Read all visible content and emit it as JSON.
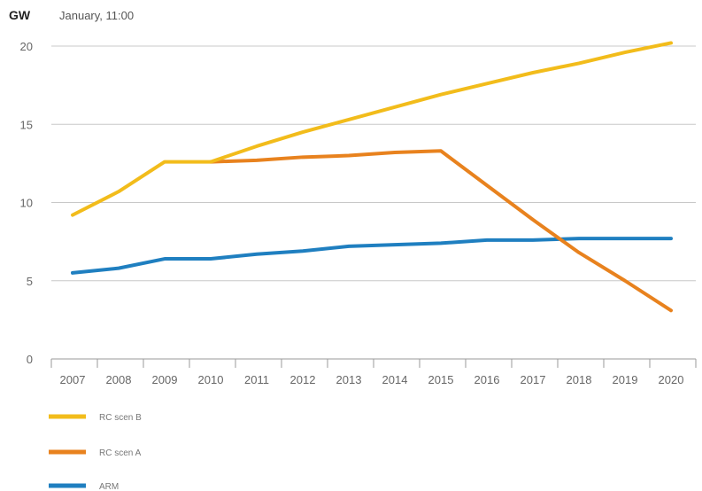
{
  "chart_data": {
    "type": "line",
    "title": "January, 11:00",
    "unit": "GW",
    "x": [
      2007,
      2008,
      2009,
      2010,
      2011,
      2012,
      2013,
      2014,
      2015,
      2016,
      2017,
      2018,
      2019,
      2020
    ],
    "x_tick_labels": [
      "2007",
      "2008",
      "2009",
      "2010",
      "2011",
      "2012",
      "2013",
      "2014",
      "2015",
      "2016",
      "2017",
      "2018",
      "2019",
      "2020"
    ],
    "ylim": [
      0,
      20
    ],
    "y_ticks": [
      0,
      5,
      10,
      15,
      20
    ],
    "y_tick_labels": [
      "0",
      "5",
      "10",
      "15",
      "20"
    ],
    "grid": true,
    "legend_position": "bottom-left",
    "series": [
      {
        "name": "RC scen B",
        "color": "#F2BC1B",
        "values": [
          9.2,
          10.7,
          12.6,
          12.6,
          13.6,
          14.5,
          15.3,
          16.1,
          16.9,
          17.6,
          18.3,
          18.9,
          19.6,
          20.2
        ]
      },
      {
        "name": "RC scen A",
        "color": "#E8821E",
        "values": [
          null,
          null,
          null,
          12.6,
          12.7,
          12.9,
          13.0,
          13.2,
          13.3,
          11.1,
          8.9,
          6.8,
          5.0,
          3.1
        ]
      },
      {
        "name": "ARM",
        "color": "#1F7FC0",
        "values": [
          5.5,
          5.8,
          6.4,
          6.4,
          6.7,
          6.9,
          7.2,
          7.3,
          7.4,
          7.6,
          7.6,
          7.7,
          7.7,
          7.7
        ]
      }
    ]
  }
}
